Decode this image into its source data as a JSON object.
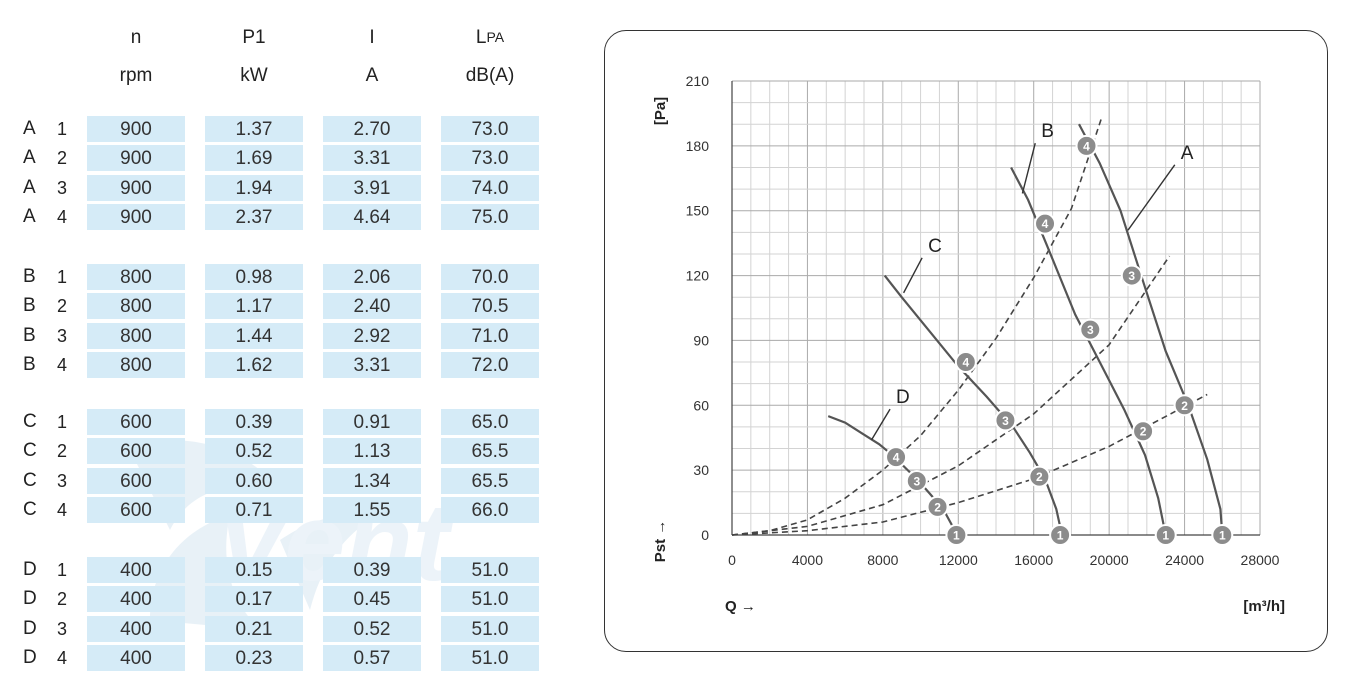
{
  "table": {
    "headers": [
      {
        "symbol": "n",
        "unit": "rpm"
      },
      {
        "symbol": "P1",
        "unit": "kW"
      },
      {
        "symbol": "I",
        "unit": "A"
      },
      {
        "symbol": "L",
        "symbol_sub": "PA",
        "unit": "dB(A)"
      }
    ],
    "groups": [
      {
        "name": "A",
        "rows": [
          {
            "step": "1",
            "values": [
              "900",
              "1.37",
              "2.70",
              "73.0"
            ]
          },
          {
            "step": "2",
            "values": [
              "900",
              "1.69",
              "3.31",
              "73.0"
            ]
          },
          {
            "step": "3",
            "values": [
              "900",
              "1.94",
              "3.91",
              "74.0"
            ]
          },
          {
            "step": "4",
            "values": [
              "900",
              "2.37",
              "4.64",
              "75.0"
            ]
          }
        ]
      },
      {
        "name": "B",
        "rows": [
          {
            "step": "1",
            "values": [
              "800",
              "0.98",
              "2.06",
              "70.0"
            ]
          },
          {
            "step": "2",
            "values": [
              "800",
              "1.17",
              "2.40",
              "70.5"
            ]
          },
          {
            "step": "3",
            "values": [
              "800",
              "1.44",
              "2.92",
              "71.0"
            ]
          },
          {
            "step": "4",
            "values": [
              "800",
              "1.62",
              "3.31",
              "72.0"
            ]
          }
        ]
      },
      {
        "name": "C",
        "rows": [
          {
            "step": "1",
            "values": [
              "600",
              "0.39",
              "0.91",
              "65.0"
            ]
          },
          {
            "step": "2",
            "values": [
              "600",
              "0.52",
              "1.13",
              "65.5"
            ]
          },
          {
            "step": "3",
            "values": [
              "600",
              "0.60",
              "1.34",
              "65.5"
            ]
          },
          {
            "step": "4",
            "values": [
              "600",
              "0.71",
              "1.55",
              "66.0"
            ]
          }
        ]
      },
      {
        "name": "D",
        "rows": [
          {
            "step": "1",
            "values": [
              "400",
              "0.15",
              "0.39",
              "51.0"
            ]
          },
          {
            "step": "2",
            "values": [
              "400",
              "0.17",
              "0.45",
              "51.0"
            ]
          },
          {
            "step": "3",
            "values": [
              "400",
              "0.21",
              "0.52",
              "51.0"
            ]
          },
          {
            "step": "4",
            "values": [
              "400",
              "0.23",
              "0.57",
              "51.0"
            ]
          }
        ]
      }
    ],
    "cell_color": "#d5ebf7",
    "watermark_text": "Vent"
  },
  "chart_data": {
    "type": "line",
    "ylabel_top": "[Pa]",
    "ylabel_bottom": "Pst →",
    "xlabel": "Q →",
    "xunit": "[m³/h]",
    "xlim": [
      0,
      28000
    ],
    "ylim": [
      0,
      210
    ],
    "xticks": [
      0,
      4000,
      8000,
      12000,
      16000,
      20000,
      24000,
      28000
    ],
    "yticks": [
      0,
      30,
      60,
      90,
      120,
      150,
      180,
      210
    ],
    "grid": true,
    "curve_color": "#555555",
    "marker_color": "#8c8c8c",
    "fan_curves": [
      {
        "name": "A",
        "points": [
          [
            18400,
            190
          ],
          [
            19500,
            172
          ],
          [
            20600,
            150
          ],
          [
            21700,
            120
          ],
          [
            23000,
            85
          ],
          [
            24200,
            60
          ],
          [
            25200,
            35
          ],
          [
            25900,
            12
          ],
          [
            26000,
            0
          ]
        ]
      },
      {
        "name": "B",
        "points": [
          [
            14800,
            170
          ],
          [
            15700,
            155
          ],
          [
            16700,
            134
          ],
          [
            18200,
            102
          ],
          [
            19500,
            80
          ],
          [
            20800,
            58
          ],
          [
            21900,
            37
          ],
          [
            22600,
            17
          ],
          [
            23000,
            0
          ]
        ]
      },
      {
        "name": "C",
        "points": [
          [
            8100,
            120
          ],
          [
            9000,
            110
          ],
          [
            10500,
            94
          ],
          [
            12000,
            78
          ],
          [
            13500,
            64
          ],
          [
            14900,
            50
          ],
          [
            15800,
            38
          ],
          [
            16600,
            26
          ],
          [
            17200,
            12
          ],
          [
            17500,
            0
          ]
        ]
      },
      {
        "name": "D",
        "points": [
          [
            5100,
            55
          ],
          [
            6000,
            52
          ],
          [
            6900,
            47
          ],
          [
            7800,
            42
          ],
          [
            8500,
            37
          ],
          [
            9200,
            31
          ],
          [
            9900,
            25
          ],
          [
            10500,
            19
          ],
          [
            11200,
            12
          ],
          [
            11700,
            4
          ],
          [
            11900,
            0
          ]
        ]
      }
    ],
    "system_curves": [
      {
        "name": "4",
        "points": [
          [
            0,
            0
          ],
          [
            2000,
            2
          ],
          [
            4000,
            7
          ],
          [
            6000,
            17
          ],
          [
            8000,
            30
          ],
          [
            10000,
            46
          ],
          [
            12000,
            67
          ],
          [
            14000,
            91
          ],
          [
            16000,
            119
          ],
          [
            18000,
            151
          ],
          [
            19600,
            193
          ]
        ]
      },
      {
        "name": "3",
        "points": [
          [
            0,
            0
          ],
          [
            4000,
            4
          ],
          [
            8000,
            14
          ],
          [
            12000,
            32
          ],
          [
            16000,
            56
          ],
          [
            20000,
            88
          ],
          [
            23200,
            129
          ]
        ]
      },
      {
        "name": "2",
        "points": [
          [
            0,
            0
          ],
          [
            4000,
            2
          ],
          [
            8000,
            6
          ],
          [
            12000,
            15
          ],
          [
            16000,
            26
          ],
          [
            20000,
            41
          ],
          [
            25200,
            65
          ]
        ]
      }
    ],
    "operating_points": [
      {
        "curve": "A",
        "step": "1",
        "q": 26000,
        "p": 0
      },
      {
        "curve": "A",
        "step": "2",
        "q": 24000,
        "p": 60
      },
      {
        "curve": "A",
        "step": "3",
        "q": 21200,
        "p": 120
      },
      {
        "curve": "A",
        "step": "4",
        "q": 18800,
        "p": 180
      },
      {
        "curve": "B",
        "step": "1",
        "q": 23000,
        "p": 0
      },
      {
        "curve": "B",
        "step": "2",
        "q": 21800,
        "p": 48
      },
      {
        "curve": "B",
        "step": "3",
        "q": 19000,
        "p": 95
      },
      {
        "curve": "B",
        "step": "4",
        "q": 16600,
        "p": 144
      },
      {
        "curve": "C",
        "step": "1",
        "q": 17400,
        "p": 0
      },
      {
        "curve": "C",
        "step": "2",
        "q": 16300,
        "p": 27
      },
      {
        "curve": "C",
        "step": "3",
        "q": 14500,
        "p": 53
      },
      {
        "curve": "C",
        "step": "4",
        "q": 12400,
        "p": 80
      },
      {
        "curve": "D",
        "step": "1",
        "q": 11900,
        "p": 0
      },
      {
        "curve": "D",
        "step": "2",
        "q": 10900,
        "p": 13
      },
      {
        "curve": "D",
        "step": "3",
        "q": 9800,
        "p": 25
      },
      {
        "curve": "D",
        "step": "4",
        "q": 8700,
        "p": 36
      }
    ],
    "curve_labels": [
      {
        "text": "A",
        "q": 23800,
        "p": 174,
        "leader_to": [
          21000,
          141
        ]
      },
      {
        "text": "B",
        "q": 16400,
        "p": 184,
        "leader_to": [
          15400,
          158
        ]
      },
      {
        "text": "C",
        "q": 10400,
        "p": 131,
        "leader_to": [
          9100,
          112
        ]
      },
      {
        "text": "D",
        "q": 8700,
        "p": 61,
        "leader_to": [
          7400,
          44
        ]
      }
    ]
  }
}
